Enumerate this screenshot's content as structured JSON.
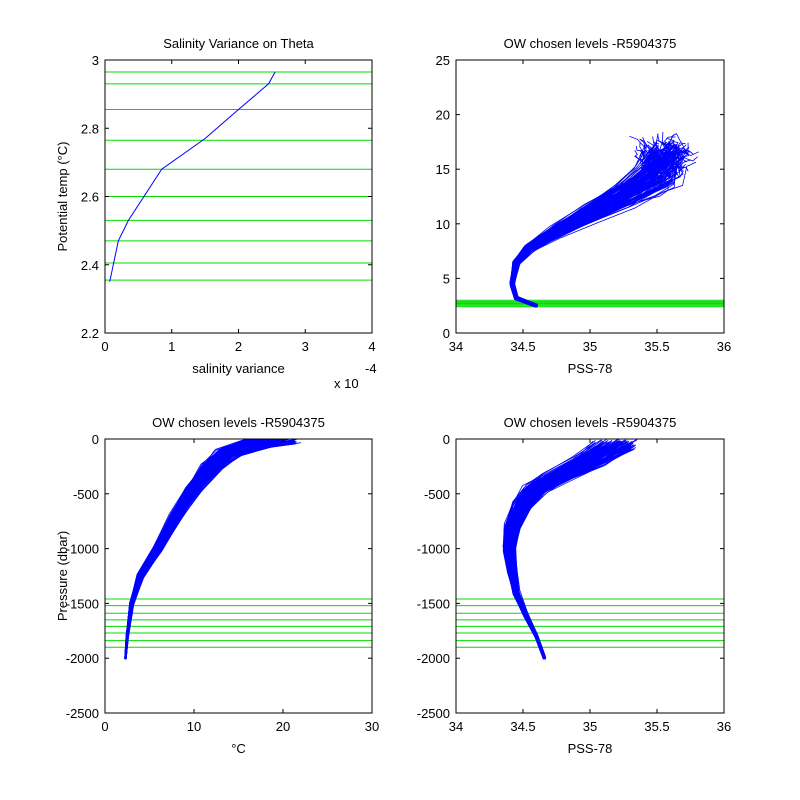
{
  "chart_data": [
    {
      "type": "line",
      "title": "Salinity Variance on Theta",
      "xlabel": "salinity variance",
      "ylabel": "Potential temp (°C)",
      "x_scale_label": "x 10",
      "x_scale_exponent": "-4",
      "xlim": [
        0,
        4
      ],
      "ylim": [
        2.2,
        3
      ],
      "xticks": [
        0,
        1,
        2,
        3,
        4
      ],
      "yticks": [
        2.2,
        2.4,
        2.6,
        2.8,
        3
      ],
      "xtick_labels": [
        "0",
        "1",
        "2",
        "3",
        "4"
      ],
      "ytick_labels": [
        "2.2",
        "2.4",
        "2.6",
        "2.8",
        "3"
      ],
      "series": [
        {
          "color": "#0000ff",
          "x": [
            0.07,
            0.2,
            0.35,
            0.85,
            1.5,
            2.0,
            2.45,
            2.55
          ],
          "y": [
            2.35,
            2.47,
            2.53,
            2.68,
            2.77,
            2.855,
            2.93,
            2.965
          ]
        }
      ],
      "hlines": [
        2.355,
        2.405,
        2.47,
        2.53,
        2.6,
        2.68,
        2.765,
        2.855,
        2.93,
        2.965
      ],
      "hline_color": "#00dd00"
    },
    {
      "type": "line",
      "title": "OW chosen levels -R5904375",
      "xlabel": "PSS-78",
      "ylabel": "",
      "xlim": [
        34,
        36
      ],
      "ylim": [
        0,
        25
      ],
      "xticks": [
        34,
        34.5,
        35,
        35.5,
        36
      ],
      "yticks": [
        0,
        5,
        10,
        15,
        20,
        25
      ],
      "xtick_labels": [
        "34",
        "34.5",
        "35",
        "35.5",
        "36"
      ],
      "ytick_labels": [
        "0",
        "5",
        "10",
        "15",
        "20",
        "25"
      ],
      "series": [
        {
          "color": "#0000ff",
          "x": [
            34.6,
            34.45,
            34.42,
            34.45,
            34.55,
            34.75,
            35.0,
            35.25,
            35.45,
            35.55
          ],
          "y": [
            2.5,
            3.2,
            4.5,
            6.5,
            7.8,
            9.3,
            11.0,
            12.7,
            14.2,
            15.5
          ]
        }
      ],
      "hlines": [
        2.4,
        2.5,
        2.6,
        2.7,
        2.8,
        2.9,
        3.0
      ],
      "hline_color": "#00dd00"
    },
    {
      "type": "line",
      "title": "OW chosen levels -R5904375",
      "xlabel": "°C",
      "ylabel": "Pressure (dbar)",
      "xlim": [
        0,
        30
      ],
      "ylim": [
        -2500,
        0
      ],
      "xticks": [
        0,
        10,
        20,
        30
      ],
      "yticks": [
        -2500,
        -2000,
        -1500,
        -1000,
        -500,
        0
      ],
      "xtick_labels": [
        "0",
        "10",
        "20",
        "30"
      ],
      "ytick_labels": [
        "-2500",
        "-2000",
        "-1500",
        "-1000",
        "-500",
        "0"
      ],
      "series": [
        {
          "color": "#0000ff",
          "x": [
            2.3,
            2.5,
            3.0,
            4.0,
            6.0,
            8.0,
            10.0,
            12.0,
            14.0,
            17.0,
            20.0
          ],
          "y": [
            -2000,
            -1800,
            -1500,
            -1250,
            -1000,
            -700,
            -450,
            -250,
            -120,
            -40,
            0
          ]
        }
      ],
      "hlines": [
        -1460,
        -1520,
        -1590,
        -1650,
        -1710,
        -1770,
        -1840,
        -1900
      ],
      "hline_color": "#00dd00"
    },
    {
      "type": "line",
      "title": "OW chosen levels -R5904375",
      "xlabel": "PSS-78",
      "ylabel": "",
      "xlim": [
        34,
        36
      ],
      "ylim": [
        -2500,
        0
      ],
      "xticks": [
        34,
        34.5,
        35,
        35.5,
        36
      ],
      "yticks": [
        -2500,
        -2000,
        -1500,
        -1000,
        -500,
        0
      ],
      "xtick_labels": [
        "34",
        "34.5",
        "35",
        "35.5",
        "36"
      ],
      "ytick_labels": [
        "-2500",
        "-2000",
        "-1500",
        "-1000",
        "-500",
        "0"
      ],
      "series": [
        {
          "color": "#0000ff",
          "x": [
            34.66,
            34.6,
            34.52,
            34.45,
            34.42,
            34.4,
            34.42,
            34.5,
            34.6,
            34.75,
            35.0,
            35.2
          ],
          "y": [
            -2000,
            -1800,
            -1600,
            -1400,
            -1200,
            -1000,
            -800,
            -600,
            -450,
            -350,
            -200,
            -50
          ]
        }
      ],
      "hlines": [
        -1460,
        -1520,
        -1590,
        -1650,
        -1710,
        -1770,
        -1840,
        -1900
      ],
      "hline_color": "#00dd00"
    }
  ]
}
